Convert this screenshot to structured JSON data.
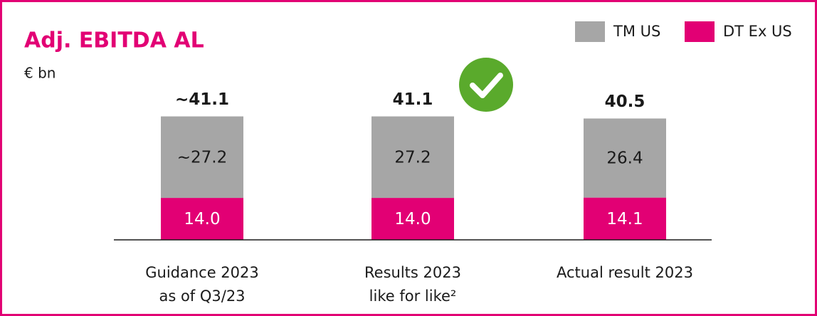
{
  "chart_data": {
    "type": "stacked_bar",
    "title": "Adj. EBITDA AL",
    "subtitle": "€ bn",
    "categories": [
      [
        "Guidance 2023",
        "as of Q3/23"
      ],
      [
        "Results 2023",
        "like for like²"
      ],
      [
        "Actual result 2023"
      ]
    ],
    "series": [
      {
        "name": "TM US",
        "color": "#a6a6a6",
        "values": [
          27.2,
          27.2,
          26.4
        ],
        "value_labels": [
          "~27.2",
          "27.2",
          "26.4"
        ]
      },
      {
        "name": "DT Ex US",
        "color": "#e20074",
        "values": [
          14.0,
          14.0,
          14.1
        ],
        "value_labels": [
          "14.0",
          "14.0",
          "14.1"
        ]
      }
    ],
    "totals": [
      41.1,
      41.1,
      40.5
    ],
    "total_labels": [
      "~41.1",
      "41.1",
      "40.5"
    ]
  }
}
